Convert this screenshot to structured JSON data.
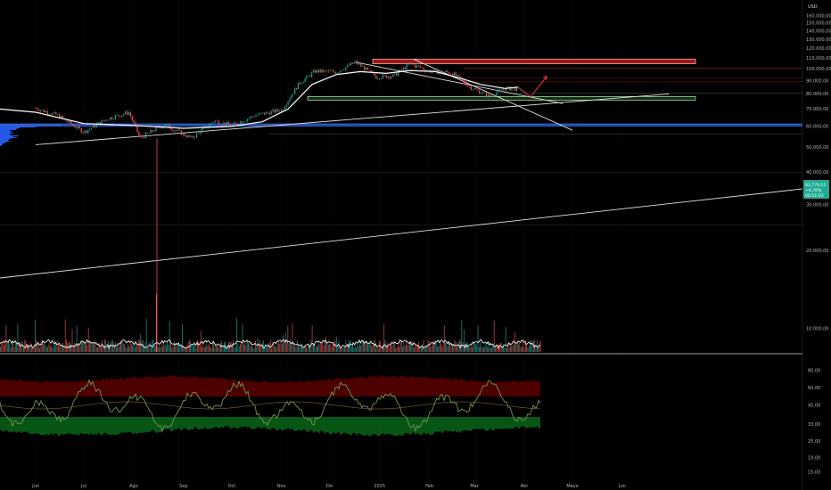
{
  "currency": "USD",
  "price_tag": {
    "price": "83,779,11",
    "change": "+4,76%",
    "countdown": "00:51:03",
    "color": "#22ab94"
  },
  "colors": {
    "up": "#26a69a",
    "down": "#ef5350",
    "volume_profile": "#2962ff",
    "ma": "#ffffff",
    "zone_resistance": "#b71c1c",
    "zone_support": "#1b5e20",
    "osc_line_up": "#4caf50",
    "osc_line_down": "#f23645",
    "osc_band_top": "#8b0000",
    "osc_band_bottom": "#0b7a1f"
  },
  "chart_data": [
    {
      "type": "line",
      "name": "price-chart",
      "scale": "log",
      "y_ticks": [
        "160.000,00",
        "150.000,00",
        "140.000,00",
        "130.000,00",
        "120.000,00",
        "110.000,00",
        "100.000,00",
        "90.000,00",
        "80.000,00",
        "70.000,00",
        "60.000,00",
        "50.000,00",
        "40.000,00",
        "30.000,00",
        "20.000,00",
        "10.000,00"
      ],
      "x_ticks": [
        "Jun",
        "Jul",
        "Ago",
        "Sep",
        "Oct",
        "Nov",
        "Dic",
        "2025",
        "Feb",
        "Mar",
        "Abr",
        "Mayo",
        "Jun"
      ],
      "ylim": [
        8000,
        170000
      ],
      "last_price": 83779.11,
      "x": [
        "2024-06-01",
        "2024-06-15",
        "2024-07-01",
        "2024-07-15",
        "2024-07-29",
        "2024-08-05",
        "2024-08-20",
        "2024-09-06",
        "2024-09-20",
        "2024-10-01",
        "2024-10-15",
        "2024-11-01",
        "2024-11-12",
        "2024-11-22",
        "2024-12-05",
        "2024-12-17",
        "2024-12-30",
        "2025-01-10",
        "2025-01-20",
        "2025-02-01",
        "2025-02-15",
        "2025-02-27",
        "2025-03-10",
        "2025-03-20",
        "2025-03-28"
      ],
      "close": [
        70500,
        66000,
        57000,
        64000,
        68000,
        54000,
        61000,
        54000,
        63000,
        60500,
        66000,
        69500,
        88000,
        98000,
        97000,
        106000,
        93000,
        94000,
        104500,
        98000,
        96500,
        84500,
        78500,
        84000,
        83779
      ],
      "moving_average": {
        "x": [
          "2024-06-01",
          "2024-07-01",
          "2024-08-01",
          "2024-09-01",
          "2024-10-01",
          "2024-10-20",
          "2024-11-05",
          "2024-11-20",
          "2024-12-05",
          "2024-12-20",
          "2025-01-05",
          "2025-01-20",
          "2025-02-05",
          "2025-02-20",
          "2025-03-05",
          "2025-03-20",
          "2025-03-28"
        ],
        "y": [
          68000,
          61500,
          60500,
          59000,
          60000,
          62500,
          70000,
          87000,
          95000,
          97500,
          96000,
          98500,
          97500,
          92000,
          87000,
          84000,
          85000
        ]
      },
      "zones": [
        {
          "from": 104500,
          "to": 109000,
          "kind": "resistance"
        },
        {
          "from": 76500,
          "to": 78200,
          "kind": "support"
        }
      ],
      "horizontal_levels": [
        100600,
        92000,
        89000,
        80500,
        61200,
        60300,
        56000,
        40000,
        25000
      ],
      "trendlines": [
        {
          "x": [
            "2024-06-01",
            "2025-06-30"
          ],
          "y": [
            51000,
            80000
          ]
        },
        {
          "x": [
            "2024-12-17",
            "2025-04-25"
          ],
          "y": [
            106000,
            73500
          ]
        },
        {
          "x": [
            "2025-01-22",
            "2025-05-01"
          ],
          "y": [
            109000,
            58000
          ]
        }
      ],
      "projection_arrow": {
        "x": [
          "2025-03-28",
          "2025-04-05",
          "2025-04-15"
        ],
        "y": [
          85000,
          78000,
          93500
        ]
      }
    },
    {
      "type": "bar",
      "name": "volume",
      "note_series": "volume bars with white moving-average line"
    },
    {
      "type": "line",
      "name": "oscillator",
      "y_ticks": [
        "80,00",
        "60,00",
        "45,00",
        "33,00",
        "25,00",
        "19,00",
        "15,00"
      ]
    }
  ]
}
